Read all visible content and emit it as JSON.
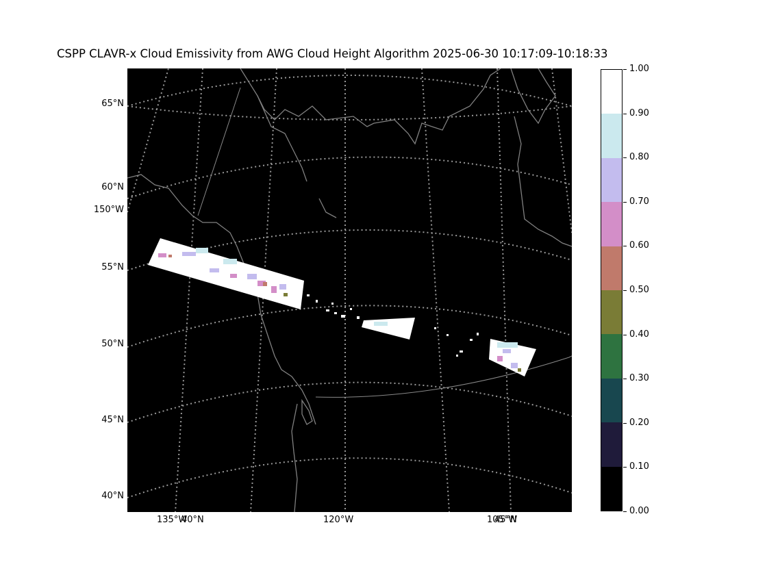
{
  "title": "CSPP CLAVR-x Cloud Emissivity from AWG Cloud Height Algorithm 2025-06-30 10:17:09-10:18:33",
  "map": {
    "projection": "lambert-conformal",
    "background": "#000000",
    "coastline_color": "#808080",
    "graticule_color": "#9a9a9a",
    "lat_labels": [
      {
        "key": "lat65",
        "text": "65°N"
      },
      {
        "key": "lat60",
        "text": "60°N"
      },
      {
        "key": "lon150",
        "text": "150°W"
      },
      {
        "key": "lat55",
        "text": "55°N"
      },
      {
        "key": "lat50",
        "text": "50°N"
      },
      {
        "key": "lat45",
        "text": "45°N"
      },
      {
        "key": "lat40",
        "text": "40°N"
      }
    ],
    "lon_labels": [
      {
        "key": "lon135",
        "text": "135°W"
      },
      {
        "key": "lat40b",
        "text": "40°N"
      },
      {
        "key": "lon120",
        "text": "120°W"
      },
      {
        "key": "lon105",
        "text": "105°W"
      },
      {
        "key": "lat45b",
        "text": "45°N"
      }
    ]
  },
  "colorbar": {
    "ticks": [
      "0.00",
      "0.10",
      "0.20",
      "0.30",
      "0.40",
      "0.50",
      "0.60",
      "0.70",
      "0.80",
      "0.90",
      "1.00"
    ],
    "colors": [
      "#000000",
      "#1f1b3a",
      "#18474f",
      "#2e7340",
      "#7a7c36",
      "#c07a6b",
      "#d38ec8",
      "#c3bcee",
      "#cbe9ee",
      "#ffffff"
    ]
  }
}
